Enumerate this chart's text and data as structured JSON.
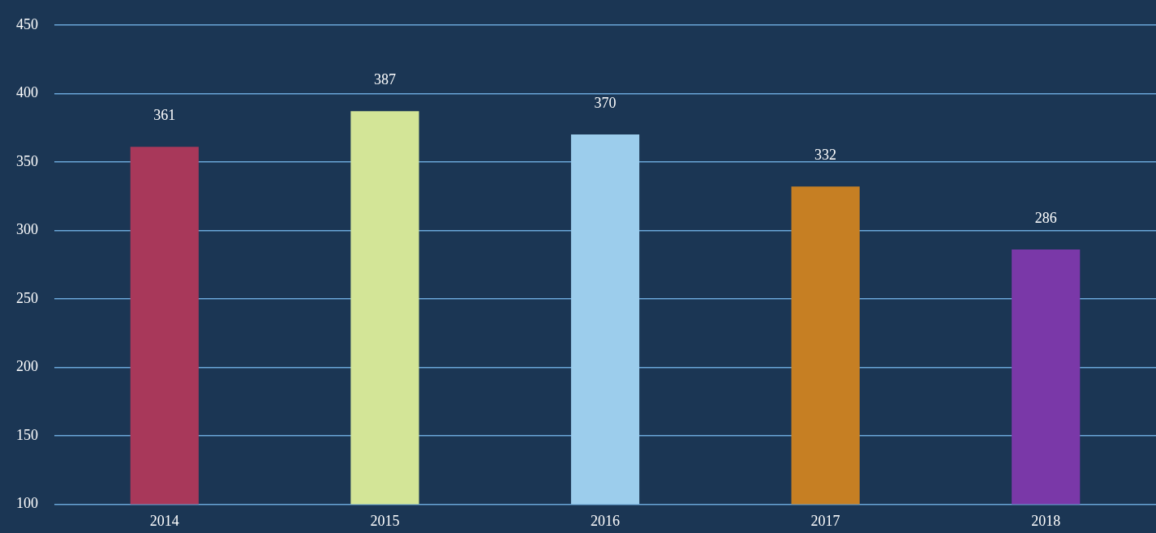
{
  "chart_data": {
    "type": "bar",
    "categories": [
      "2014",
      "2015",
      "2016",
      "2017",
      "2018"
    ],
    "values": [
      361,
      387,
      370,
      332,
      286
    ],
    "colors": [
      "#a8385a",
      "#d3e597",
      "#9ccdec",
      "#c67f23",
      "#7a38a8"
    ],
    "ylim": [
      100,
      450
    ],
    "yticks": [
      100,
      150,
      200,
      250,
      300,
      350,
      400,
      450
    ],
    "grid": "y",
    "data_labels": true,
    "legend": false
  }
}
